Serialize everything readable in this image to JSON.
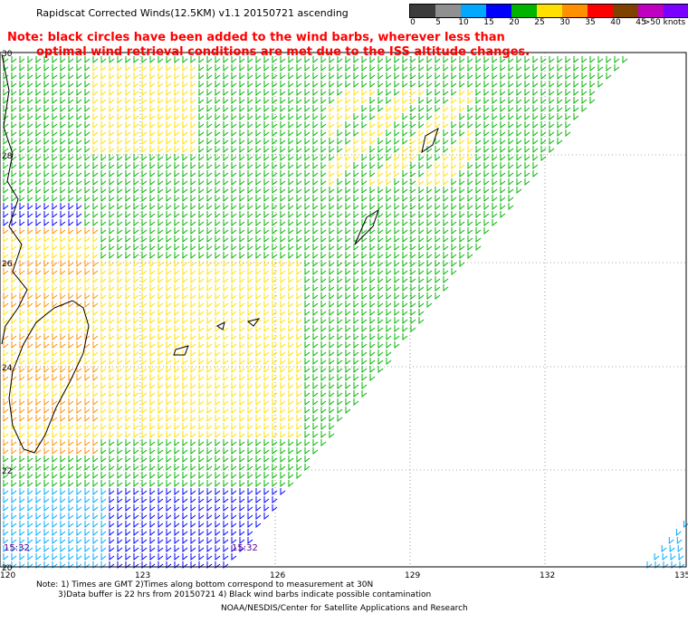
{
  "title": "Rapidscat Corrected Winds(12.5KM) v1.1 20150721 ascending",
  "note_line1": "Note: black circles have been added to the wind barbs, wherever less than",
  "note_line2": "optimal wind retrieval conditions are met due to the ISS altitude changes.",
  "colorbar": {
    "labels": [
      "0",
      "5",
      "10",
      "15",
      "20",
      "25",
      "30",
      "35",
      "40",
      "45",
      ">50 knots"
    ],
    "colors": [
      "#3c3c3c",
      "#909090",
      "#00a8ff",
      "#0000ff",
      "#00b400",
      "#ffe000",
      "#ff9000",
      "#ff0000",
      "#804000",
      "#c000c0",
      "#7a00ff",
      "#400080"
    ]
  },
  "axes": {
    "lon_ticks": [
      "120",
      "123",
      "126",
      "129",
      "132",
      "135"
    ],
    "lat_ticks": [
      "30",
      "28",
      "26",
      "24",
      "22",
      "20"
    ]
  },
  "time_labels": [
    "15:32",
    "15:32"
  ],
  "footer": {
    "line1": "Note: 1) Times are GMT  2)Times along bottom correspond to measurement at 30N",
    "line2": "3)Data buffer is 22 hrs from 20150721   4) Black wind barbs indicate possible contamination",
    "line3": "NOAA/NESDIS/Center for Satellite Applications and Research"
  }
}
